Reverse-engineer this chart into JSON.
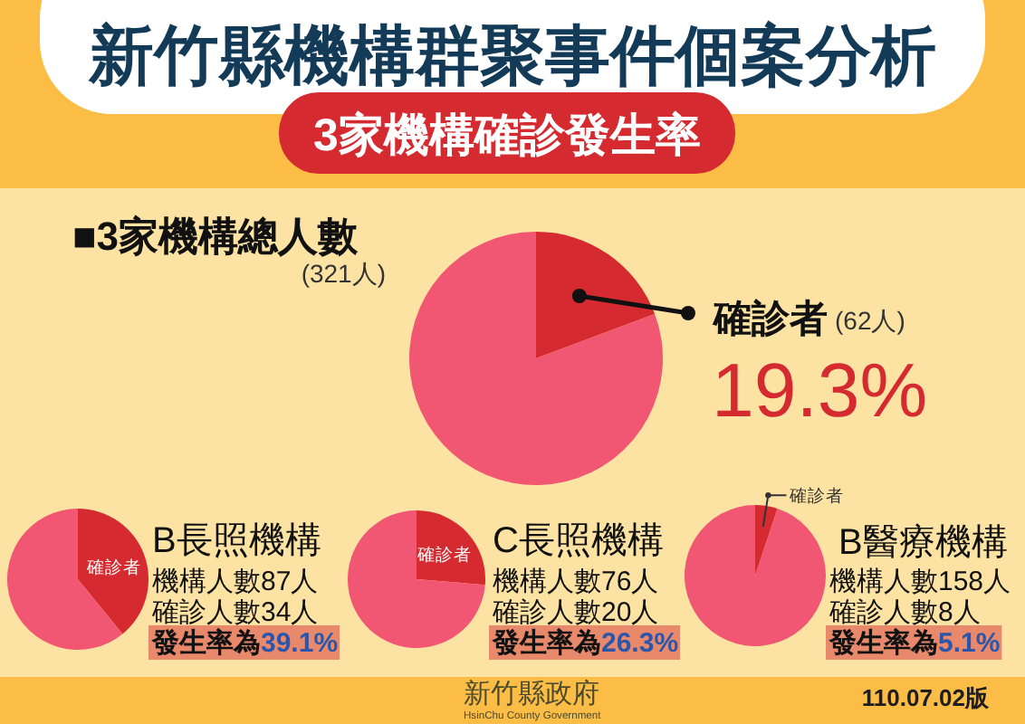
{
  "chart_data": [
    {
      "type": "other",
      "title": "新竹縣機構群聚事件個案分析",
      "subtitle": "3家機構確診發生率",
      "annotations": [
        "110.07.02版",
        "新竹縣政府",
        "HsinChu County Government"
      ]
    },
    {
      "type": "pie",
      "title": "■3家機構總人數",
      "categories": [
        "確診者",
        null
      ],
      "values": [
        19.3,
        80.7
      ],
      "colors": [
        "#d42a30",
        "#f15672"
      ],
      "value_labels": [
        "19.3%",
        null
      ],
      "annotations": [
        "(321人)",
        "(62人)"
      ]
    },
    {
      "type": "pie",
      "title": "B長照機構",
      "categories": [
        "確診者",
        null
      ],
      "values": [
        39.1,
        60.9
      ],
      "colors": [
        "#d42a30",
        "#f15672"
      ],
      "annotations": [
        "機構人數87人",
        "確診人數34人",
        "發生率為39.1%"
      ]
    },
    {
      "type": "pie",
      "title": "C長照機構",
      "categories": [
        "確診者",
        null
      ],
      "values": [
        26.3,
        73.7
      ],
      "colors": [
        "#d42a30",
        "#f15672"
      ],
      "annotations": [
        "機構人數76人",
        "確診人數20人",
        "發生率為26.3%"
      ]
    },
    {
      "type": "pie",
      "title": "B醫療機構",
      "categories": [
        "確診者",
        null
      ],
      "values": [
        5.1,
        94.9
      ],
      "colors": [
        "#d42a30",
        "#f15672"
      ],
      "annotations": [
        "機構人數158人",
        "確診人數8人",
        "發生率為5.1%"
      ]
    }
  ]
}
